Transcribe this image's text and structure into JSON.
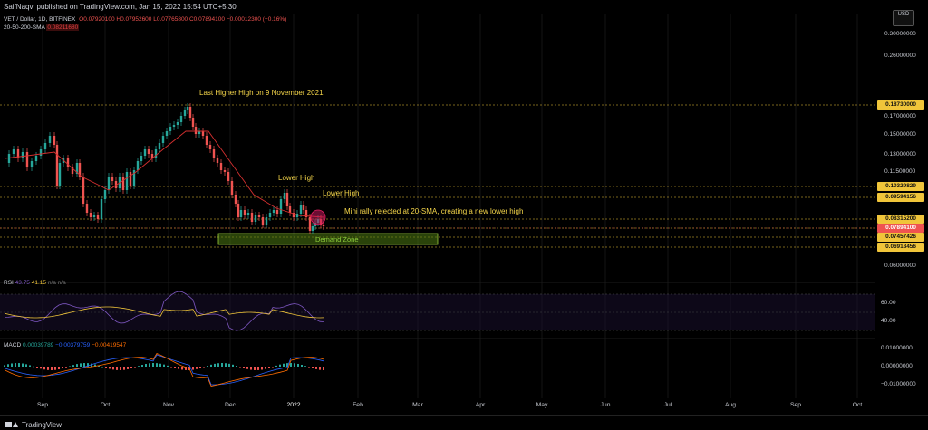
{
  "header": {
    "published_text": "SaifNaqvi published on TradingView.com, Jan 15, 2022 15:54 UTC+5:30"
  },
  "legend": {
    "pair": "VET / Dollar, 1D, BITFINEX",
    "ohlc": "O0.07920100 H0.07952600 L0.07765800 C0.07894100 −0.00012300 (−0.16%)",
    "sma_label": "20-50-200-SMA",
    "sma_value": "0.08211680"
  },
  "currency_button": "USD",
  "price_axis": {
    "ticks": [
      "0.34000000",
      "0.30000000",
      "0.26000000",
      "0.17000000",
      "0.15000000",
      "0.13000000",
      "0.11500000",
      "0.06000000"
    ],
    "boxes": [
      {
        "text": "0.18730000",
        "style": "yellow"
      },
      {
        "text": "0.10329829",
        "style": "yellow"
      },
      {
        "text": "0.09594156",
        "style": "yellow"
      },
      {
        "text": "0.08315200",
        "style": "yellow"
      },
      {
        "text": "0.07894100",
        "style": "red"
      },
      {
        "text": "0.07457426",
        "style": "yellow"
      },
      {
        "text": "0.06918456",
        "style": "yellow"
      }
    ]
  },
  "annotations": {
    "last_higher_high": "Last Higher High on 9 November 2021",
    "lower_high_1": "Lower High",
    "lower_high_2": "Lower High",
    "mini_rally": "Mini rally rejected at 20-SMA, creating a new lower high",
    "demand_zone": "Demand Zone"
  },
  "rsi": {
    "label": "RSI",
    "value1": "43.75",
    "value2": "41.15",
    "extra": "n/a  n/a",
    "ticks": [
      "60.00",
      "40.00"
    ],
    "line_color": "#7e57c2",
    "ma_color": "#f0c53a"
  },
  "macd": {
    "label": "MACD",
    "v1": "0.00039789",
    "v2": "−0.00379759",
    "v3": "−0.00419547",
    "ticks": [
      "0.01000000",
      "0.00000000",
      "−0.01000000"
    ]
  },
  "time_axis": {
    "months": [
      "Sep",
      "Oct",
      "Nov",
      "Dec",
      "2022",
      "Feb",
      "Mar",
      "Apr",
      "May",
      "Jun",
      "Jul",
      "Aug",
      "Sep",
      "Oct"
    ]
  },
  "footer": {
    "brand": "TradingView"
  },
  "colors": {
    "up": "#26a69a",
    "down": "#ef5350",
    "sma": "#d32f2f",
    "level_line": "#f0c53a",
    "demand_fill": "#4d7a12",
    "demand_border": "#9ccc3c"
  }
}
